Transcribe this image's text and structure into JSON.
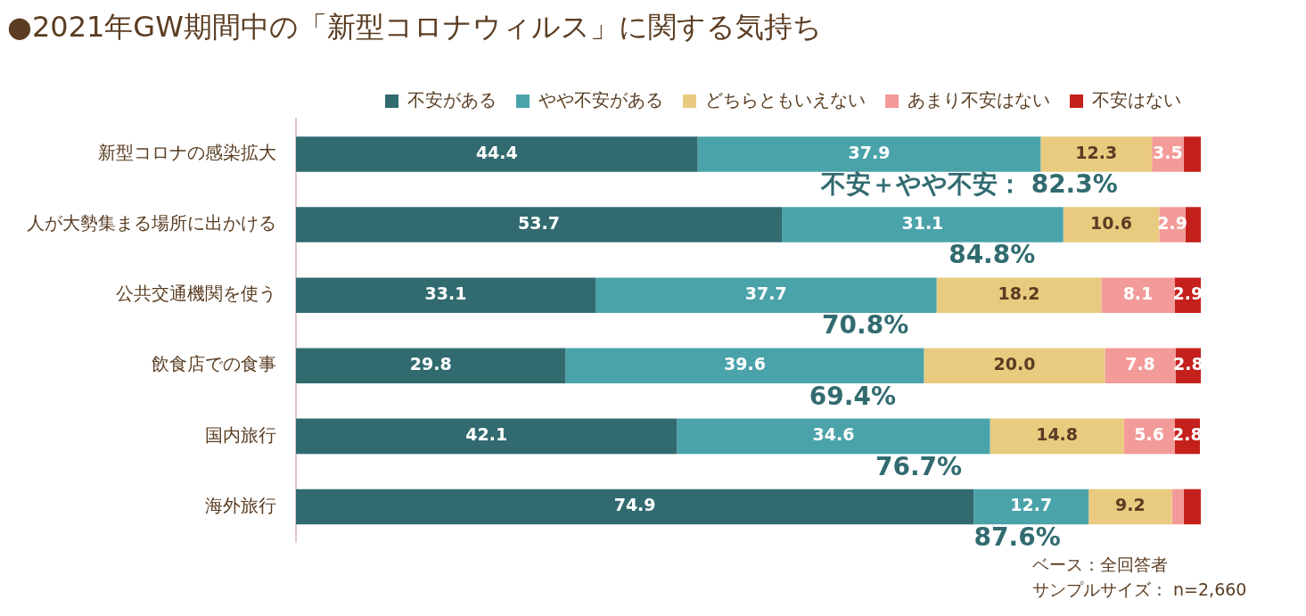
{
  "chart_data": {
    "type": "bar",
    "orientation": "horizontal",
    "stacked": true,
    "title": "●2021年GW期間中の「新型コロナウィルス」に関する気持ち",
    "categories": [
      "新型コロナの感染拡大",
      "人が大勢集まる場所に出かける",
      "公共交通機関を使う",
      "飲食店での食事",
      "国内旅行",
      "海外旅行"
    ],
    "series": [
      {
        "name": "不安がある",
        "color": "#316b70",
        "values": [
          44.4,
          53.7,
          33.1,
          29.8,
          42.1,
          74.9
        ],
        "value_labels": [
          "44.4",
          "53.7",
          "33.1",
          "29.8",
          "42.1",
          "74.9"
        ]
      },
      {
        "name": "やや不安がある",
        "color": "#4ba3aa",
        "values": [
          37.9,
          31.1,
          37.7,
          39.6,
          34.6,
          12.7
        ],
        "value_labels": [
          "37.9",
          "31.1",
          "37.7",
          "39.6",
          "34.6",
          "12.7"
        ]
      },
      {
        "name": "どちらともいえない",
        "color": "#e9cb7f",
        "values": [
          12.3,
          10.6,
          18.2,
          20.0,
          14.8,
          9.2
        ],
        "value_labels": [
          "12.3",
          "10.6",
          "18.2",
          "20.0",
          "14.8",
          "9.2"
        ]
      },
      {
        "name": "あまり不安はない",
        "color": "#f39b98",
        "values": [
          3.5,
          2.9,
          8.1,
          7.8,
          5.6,
          1.3
        ],
        "value_labels": [
          "3.5",
          "2.9",
          "8.1",
          "7.8",
          "5.6",
          null
        ]
      },
      {
        "name": "不安はない",
        "color": "#c4201c",
        "values": [
          1.9,
          1.7,
          2.9,
          2.8,
          2.8,
          1.9
        ],
        "value_labels": [
          null,
          null,
          "2.9",
          "2.8",
          "2.8",
          null
        ]
      }
    ],
    "xlim": [
      0,
      100
    ],
    "tick_labels": "y",
    "legend": "top",
    "grid": false,
    "annotations": [
      {
        "text": "不安＋やや不安： 82.3%",
        "x": 82.3,
        "y": "新型コロナの感染拡大"
      },
      {
        "text": "84.8%",
        "x": 84.8,
        "y": "人が大勢集まる場所に出かける"
      },
      {
        "text": "70.8%",
        "x": 70.8,
        "y": "公共交通機関を使う"
      },
      {
        "text": "69.4%",
        "x": 69.4,
        "y": "飲食店での食事"
      },
      {
        "text": "76.7%",
        "x": 76.7,
        "y": "国内旅行"
      },
      {
        "text": "87.6%",
        "x": 87.6,
        "y": "海外旅行"
      },
      "ベース：全回答者",
      "サンプルサイズ： n=2,660"
    ]
  }
}
